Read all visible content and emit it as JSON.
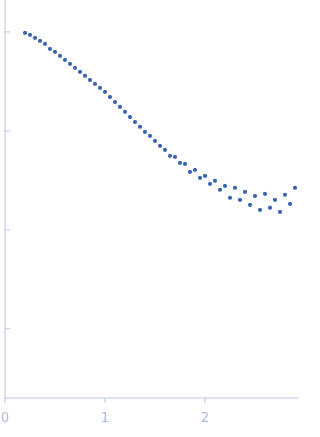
{
  "chart_data": {
    "type": "scatter",
    "log_scale_y": true,
    "color": "#3b65b3",
    "x": [
      0.2,
      0.25,
      0.3,
      0.35,
      0.4,
      0.45,
      0.5,
      0.55,
      0.6,
      0.65,
      0.7,
      0.75,
      0.8,
      0.85,
      0.9,
      0.95,
      1.0,
      1.05,
      1.1,
      1.15,
      1.2,
      1.25,
      1.3,
      1.35,
      1.4,
      1.45,
      1.5,
      1.55,
      1.6,
      1.65,
      1.7,
      1.75,
      1.8,
      1.85,
      1.9,
      1.95,
      2.0,
      2.05,
      2.1,
      2.15,
      2.2,
      2.25,
      2.3,
      2.35,
      2.4,
      2.45,
      2.5,
      2.55,
      2.6,
      2.65,
      2.7,
      2.75,
      2.8,
      2.85,
      2.9
    ],
    "values": [
      0.977,
      0.933,
      0.869,
      0.811,
      0.757,
      0.673,
      0.628,
      0.573,
      0.521,
      0.475,
      0.433,
      0.394,
      0.36,
      0.327,
      0.298,
      0.272,
      0.248,
      0.22,
      0.196,
      0.175,
      0.156,
      0.138,
      0.123,
      0.11,
      0.0977,
      0.089,
      0.0792,
      0.0705,
      0.0643,
      0.0559,
      0.0546,
      0.0475,
      0.0464,
      0.0385,
      0.0404,
      0.0335,
      0.0351,
      0.0291,
      0.0313,
      0.0254,
      0.0278,
      0.0211,
      0.0266,
      0.0201,
      0.0242,
      0.0179,
      0.022,
      0.0159,
      0.0231,
      0.0167,
      0.0201,
      0.0152,
      0.0226,
      0.0183,
      0.0266
    ],
    "xlim": [
      0,
      2.93
    ],
    "xticks": [
      0,
      1,
      2
    ],
    "ylim": [
      0.0002,
      2.1
    ],
    "yticks": [
      1,
      0.1,
      0.01,
      0.001
    ]
  }
}
